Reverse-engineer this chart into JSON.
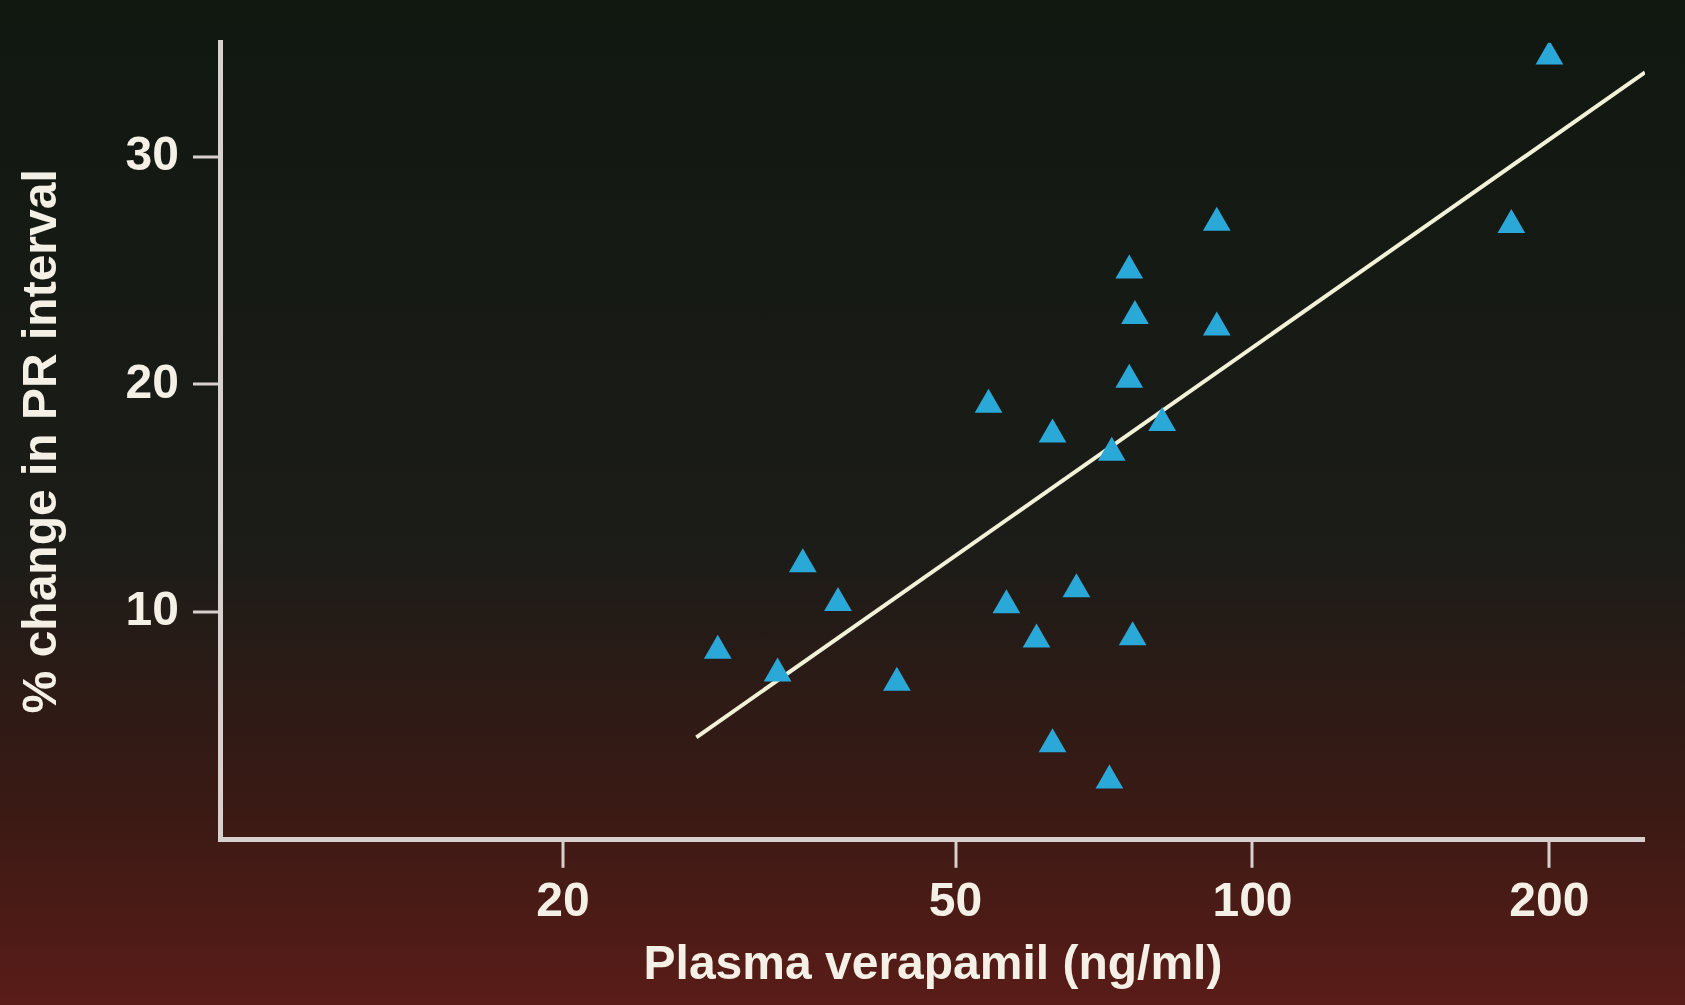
{
  "chart_data": {
    "type": "scatter",
    "xlabel": "Plasma verapamil (ng/ml)",
    "ylabel": "% change in PR interval",
    "log": "x",
    "xlim": [
      9,
      250
    ],
    "xticks": [
      20,
      50,
      100,
      200
    ],
    "ylim": [
      0,
      35
    ],
    "yticks": [
      10,
      20,
      30
    ],
    "grid": false,
    "legend": false,
    "marker": "triangle",
    "series": [
      {
        "color": "#2aa8d8",
        "x": [
          200,
          92,
          183,
          75,
          76,
          92,
          75,
          54,
          62.7,
          81,
          72,
          35,
          38,
          56.3,
          66.3,
          60.4,
          75.6,
          28.7,
          33,
          43.6,
          62.7,
          71.6
        ],
        "values": [
          34.4,
          27.1,
          27.0,
          25.0,
          23.0,
          22.5,
          20.2,
          19.1,
          17.8,
          18.3,
          17.0,
          12.1,
          10.4,
          10.3,
          11.0,
          8.8,
          8.9,
          8.3,
          7.3,
          6.9,
          4.2,
          2.6
        ]
      },
      {
        "type": "line",
        "color": "#f2f2d8",
        "marker": "none",
        "line_style": "solid",
        "x": [
          27.3,
          250
        ],
        "values": [
          4.5,
          33.7
        ]
      }
    ]
  }
}
